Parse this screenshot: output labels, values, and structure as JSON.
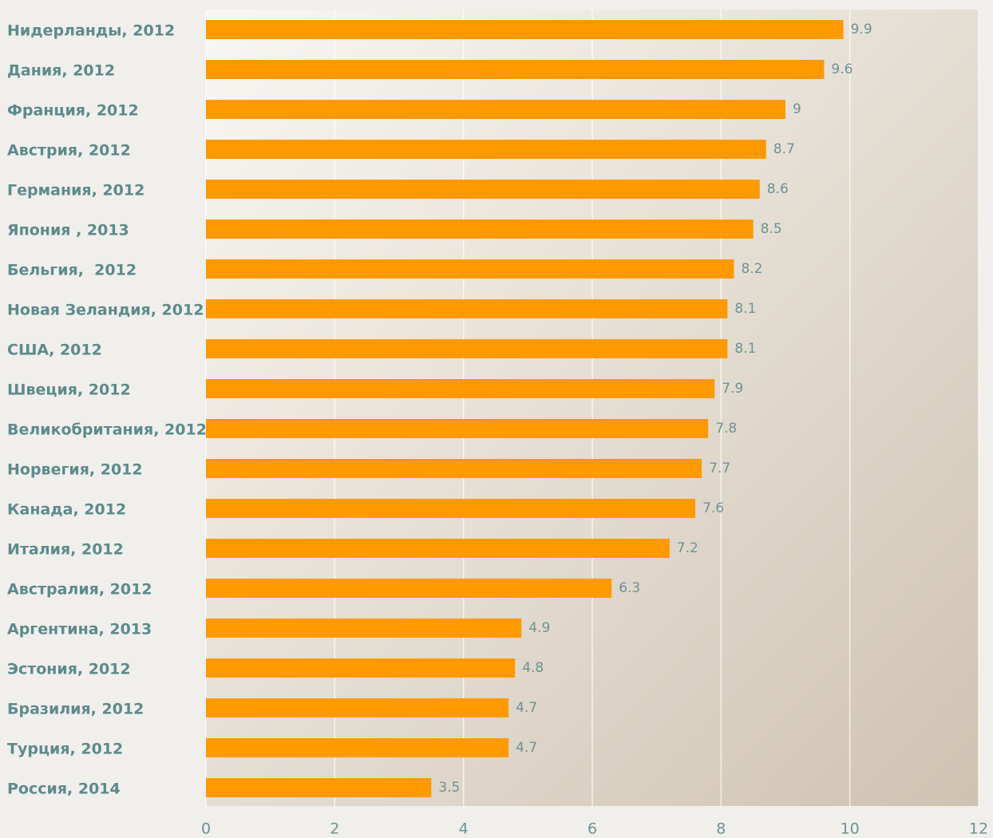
{
  "chart_data": {
    "type": "bar",
    "orientation": "horizontal",
    "categories": [
      "Нидерланды, 2012",
      "Дания, 2012",
      "Франция, 2012",
      "Австрия, 2012",
      "Германия, 2012",
      "Япония , 2013",
      "Бельгия,  2012",
      "Новая Зеландия, 2012",
      "США, 2012",
      "Швеция, 2012",
      "Великобритания, 2012",
      "Норвегия, 2012",
      "Канада, 2012",
      "Италия, 2012",
      "Австралия, 2012",
      "Аргентина, 2013",
      "Эстония, 2012",
      "Бразилия, 2012",
      "Турция, 2012",
      "Россия, 2014"
    ],
    "values": [
      9.9,
      9.6,
      9,
      8.7,
      8.6,
      8.5,
      8.2,
      8.1,
      8.1,
      7.9,
      7.8,
      7.7,
      7.6,
      7.2,
      6.3,
      4.9,
      4.8,
      4.7,
      4.7,
      3.5
    ],
    "color": "#ff9900",
    "xlim": [
      0,
      12
    ],
    "xticks": [
      0,
      2,
      4,
      6,
      8,
      10,
      12
    ],
    "grid": true
  }
}
